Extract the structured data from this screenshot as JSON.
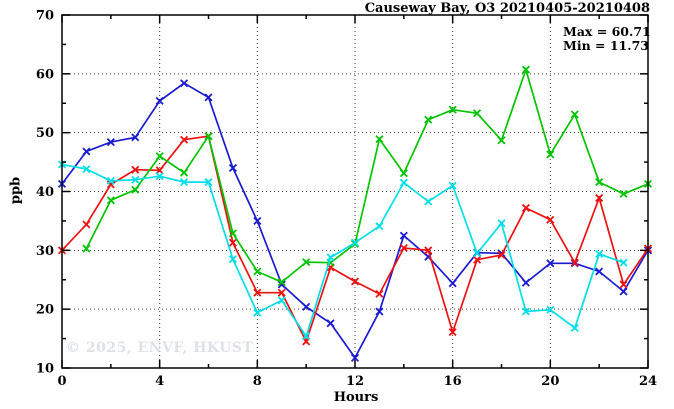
{
  "chart": {
    "title": "Causeway Bay, O3 20210405-20210408",
    "max_label": "Max = 60.71",
    "min_label": "Min = 11.73",
    "y_axis_label": "ppb",
    "x_axis_label": "Hours",
    "watermark": "© 2025, ENVF, HKUST"
  },
  "chart_data": {
    "type": "line",
    "title": "Causeway Bay, O3 20210405-20210408",
    "xlabel": "Hours",
    "ylabel": "ppb",
    "xlim": [
      0,
      24
    ],
    "ylim": [
      10,
      70
    ],
    "x_ticks": [
      0,
      4,
      8,
      12,
      16,
      20,
      24
    ],
    "x_minor_ticks": [
      2,
      6,
      10,
      14,
      18,
      22
    ],
    "y_ticks": [
      10,
      20,
      30,
      40,
      50,
      60,
      70
    ],
    "y_minor_ticks": [
      15,
      25,
      35,
      45,
      55,
      65
    ],
    "grid": true,
    "legend_position": "none",
    "annotations": {
      "max": 60.71,
      "min": 11.73
    },
    "x": [
      0,
      1,
      2,
      3,
      4,
      5,
      6,
      7,
      8,
      9,
      10,
      11,
      12,
      13,
      14,
      15,
      16,
      17,
      18,
      19,
      20,
      21,
      22,
      23,
      24
    ],
    "series": [
      {
        "name": "series-blue",
        "color": "#1b1bd2",
        "values": [
          41.3,
          46.8,
          48.4,
          49.2,
          55.4,
          58.4,
          56.0,
          44.0,
          35.0,
          24.2,
          20.4,
          17.6,
          11.73,
          19.6,
          32.5,
          28.9,
          24.4,
          29.6,
          29.5,
          24.5,
          27.8,
          27.8,
          26.4,
          23.0,
          30.0
        ]
      },
      {
        "name": "series-red",
        "color": "#ee1111",
        "values": [
          30.0,
          34.4,
          41.2,
          43.7,
          43.6,
          48.8,
          49.4,
          31.3,
          22.8,
          22.8,
          14.5,
          27.1,
          24.7,
          22.6,
          30.4,
          30.0,
          16.1,
          28.4,
          29.2,
          37.2,
          35.2,
          27.9,
          38.9,
          24.2,
          30.3
        ]
      },
      {
        "name": "series-green",
        "color": "#00c400",
        "values": [
          null,
          30.3,
          38.5,
          40.3,
          46.0,
          43.2,
          49.4,
          32.9,
          26.4,
          24.6,
          28.0,
          27.9,
          31.1,
          48.9,
          43.1,
          52.2,
          53.9,
          53.3,
          48.7,
          60.71,
          46.3,
          53.1,
          41.6,
          39.6,
          41.3
        ]
      },
      {
        "name": "series-cyan",
        "color": "#00dfe8",
        "values": [
          44.6,
          43.8,
          41.8,
          42.0,
          42.6,
          41.6,
          41.6,
          28.5,
          19.4,
          21.5,
          15.4,
          28.8,
          31.3,
          34.1,
          41.5,
          38.3,
          41.0,
          29.5,
          34.6,
          19.6,
          19.9,
          16.8,
          29.4,
          27.9,
          null
        ]
      }
    ]
  }
}
